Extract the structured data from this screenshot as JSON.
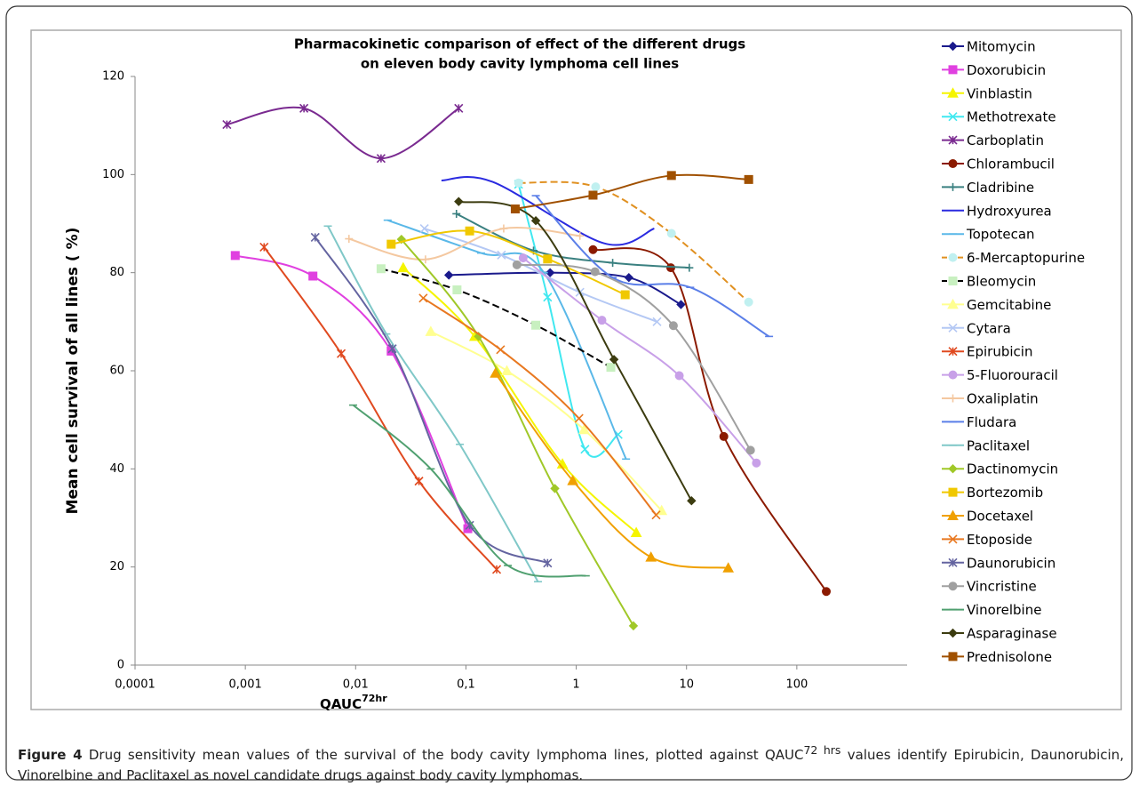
{
  "chart_data": {
    "type": "line",
    "title": [
      "Pharmacokinetic comparison of effect of the different drugs",
      "on eleven body cavity lymphoma cell lines"
    ],
    "x_label": {
      "text": "QAUC",
      "sup": "72hr"
    },
    "y_label": "Mean cell survival of all lines ( %)",
    "x_scale": "log",
    "xlim": [
      0.0001,
      1000
    ],
    "xticks": [
      {
        "value": 0.0001,
        "label": "0,0001"
      },
      {
        "value": 0.001,
        "label": "0,001"
      },
      {
        "value": 0.01,
        "label": "0,01"
      },
      {
        "value": 0.1,
        "label": "0,1"
      },
      1,
      10,
      100
    ],
    "ylim": [
      0,
      120
    ],
    "yticks": [
      0,
      20,
      40,
      60,
      80,
      100,
      120
    ],
    "grid": false,
    "smooth": true,
    "legend": "right",
    "series": [
      {
        "name": "Mitomycin",
        "color": "#1a1a8c",
        "marker": "diamond",
        "x": [
          0.07,
          0.58,
          3.0,
          8.9
        ],
        "values": [
          79.5,
          80,
          79,
          73.5
        ]
      },
      {
        "name": "Doxorubicin",
        "color": "#e040e0",
        "marker": "square",
        "x": [
          0.00081,
          0.0041,
          0.021,
          0.104
        ],
        "values": [
          83.5,
          79.3,
          64,
          27.8
        ]
      },
      {
        "name": "Vinblastin",
        "color": "#f5f500",
        "marker": "triangle",
        "x": [
          0.027,
          0.12,
          0.75,
          3.5
        ],
        "values": [
          81,
          67,
          41,
          27
        ]
      },
      {
        "name": "Methotrexate",
        "color": "#40e8f0",
        "marker": "x",
        "x": [
          0.3,
          0.55,
          1.2,
          2.4
        ],
        "values": [
          98,
          75,
          44,
          47
        ]
      },
      {
        "name": "Carboplatin",
        "color": "#7a2a90",
        "marker": "star",
        "x": [
          0.00068,
          0.0034,
          0.017,
          0.086
        ],
        "values": [
          110.2,
          113.5,
          103.3,
          113.5
        ]
      },
      {
        "name": "Chlorambucil",
        "color": "#8b1a00",
        "marker": "circle",
        "x": [
          1.42,
          7.2,
          21.8,
          185
        ],
        "values": [
          84.7,
          81,
          46.6,
          15
        ]
      },
      {
        "name": "Cladribine",
        "color": "#3a8080",
        "marker": "plus",
        "x": [
          0.082,
          0.41,
          2.14,
          10.6
        ],
        "values": [
          92,
          84.5,
          82,
          81
        ]
      },
      {
        "name": "Hydroxyurea",
        "color": "#2a2ae0",
        "marker": "none",
        "x": [
          0.06,
          0.175,
          1.78,
          5.1
        ],
        "values": [
          98.8,
          98.5,
          86,
          89
        ]
      },
      {
        "name": "Topotecan",
        "color": "#5ab8e8",
        "marker": "dash",
        "x": [
          0.0195,
          0.137,
          0.51,
          2.83
        ],
        "values": [
          90.7,
          84,
          80,
          42
        ]
      },
      {
        "name": "6-Mercaptopurine",
        "color": "#e09020",
        "marker": "circle",
        "marker_color": "#c0f0f0",
        "dashed": true,
        "x": [
          0.3,
          1.5,
          7.3,
          36.6
        ],
        "values": [
          98.3,
          97.5,
          88,
          74
        ]
      },
      {
        "name": "Bleomycin",
        "color": "#000000",
        "marker": "square",
        "marker_color": "#c8f0c0",
        "dashed": true,
        "x": [
          0.017,
          0.083,
          0.43,
          2.06
        ],
        "values": [
          80.8,
          76.5,
          69.3,
          60.7
        ]
      },
      {
        "name": "Gemcitabine",
        "color": "#ffff90",
        "marker": "triangle",
        "x": [
          0.048,
          0.235,
          1.18,
          5.95
        ],
        "values": [
          68,
          60,
          48,
          31.5
        ]
      },
      {
        "name": "Cytara",
        "color": "#b4c8f4",
        "marker": "x",
        "x": [
          0.042,
          0.21,
          1.08,
          5.4
        ],
        "values": [
          89,
          83.6,
          76,
          70
        ]
      },
      {
        "name": "Epirubicin",
        "color": "#e04a20",
        "marker": "star",
        "x": [
          0.00148,
          0.0074,
          0.0375,
          0.19
        ],
        "values": [
          85.2,
          63.5,
          37.5,
          19.5
        ]
      },
      {
        "name": "5-Fluorouracil",
        "color": "#c8a0e8",
        "marker": "circle",
        "x": [
          0.33,
          1.71,
          8.6,
          43
        ],
        "values": [
          83,
          70.3,
          59,
          41.2
        ]
      },
      {
        "name": "Oxaliplatin",
        "color": "#f4c8a0",
        "marker": "plus",
        "x": [
          0.0087,
          0.043,
          0.22,
          1.08
        ],
        "values": [
          86.9,
          82.7,
          89,
          87.5
        ]
      },
      {
        "name": "Fludara",
        "color": "#5b7fe8",
        "marker": "dash",
        "x": [
          0.43,
          2.14,
          10.8,
          56
        ],
        "values": [
          95.7,
          79,
          77,
          67
        ]
      },
      {
        "name": "Paclitaxel",
        "color": "#80c8c8",
        "marker": "dash",
        "x": [
          0.0056,
          0.019,
          0.088,
          0.45
        ],
        "values": [
          89.5,
          67.5,
          45,
          17
        ]
      },
      {
        "name": "Dactinomycin",
        "color": "#a0c828",
        "marker": "diamond",
        "x": [
          0.026,
          0.13,
          0.64,
          3.3
        ],
        "values": [
          86.8,
          67,
          36,
          8
        ]
      },
      {
        "name": "Bortezomib",
        "color": "#f0c800",
        "marker": "square",
        "x": [
          0.021,
          0.108,
          0.55,
          2.78
        ],
        "values": [
          85.8,
          88.5,
          82.8,
          75.5
        ]
      },
      {
        "name": "Docetaxel",
        "color": "#f0a000",
        "marker": "triangle",
        "x": [
          0.185,
          0.93,
          4.76,
          23.9
        ],
        "values": [
          59.5,
          37.6,
          22,
          19.8
        ]
      },
      {
        "name": "Etoposide",
        "color": "#e87820",
        "marker": "x",
        "x": [
          0.041,
          0.206,
          1.06,
          5.3
        ],
        "values": [
          74.8,
          64.3,
          50.3,
          30.6
        ]
      },
      {
        "name": "Daunorubicin",
        "color": "#6464a0",
        "marker": "star",
        "x": [
          0.0043,
          0.0215,
          0.108,
          0.55
        ],
        "values": [
          87.2,
          64.5,
          28.5,
          20.8
        ]
      },
      {
        "name": "Vincristine",
        "color": "#a0a0a0",
        "marker": "circle",
        "x": [
          0.29,
          1.48,
          7.6,
          38
        ],
        "values": [
          81.6,
          80.2,
          69.2,
          43.8
        ]
      },
      {
        "name": "Vinorelbine",
        "color": "#50a070",
        "marker": "dash",
        "x": [
          0.0095,
          0.048,
          0.24,
          1.22
        ],
        "values": [
          53,
          40,
          20.3,
          18.2
        ]
      },
      {
        "name": "Asparaginase",
        "color": "#3c3c10",
        "marker": "diamond",
        "x": [
          0.086,
          0.43,
          2.2,
          11.1
        ],
        "values": [
          94.5,
          90.6,
          62.3,
          33.5
        ]
      },
      {
        "name": "Prednisolone",
        "color": "#a05000",
        "marker": "square",
        "x": [
          0.28,
          1.42,
          7.3,
          36.6
        ],
        "values": [
          93,
          95.8,
          99.8,
          99
        ]
      }
    ]
  },
  "caption": {
    "label": "Figure 4",
    "text": " Drug sensitivity mean values of the survival of the body cavity lymphoma lines, plotted against QAUC",
    "sup": "72 hrs",
    "text2": " values identify Epirubicin, Daunorubicin, Vinorelbine and Paclitaxel as novel candidate drugs against body cavity lymphomas."
  }
}
